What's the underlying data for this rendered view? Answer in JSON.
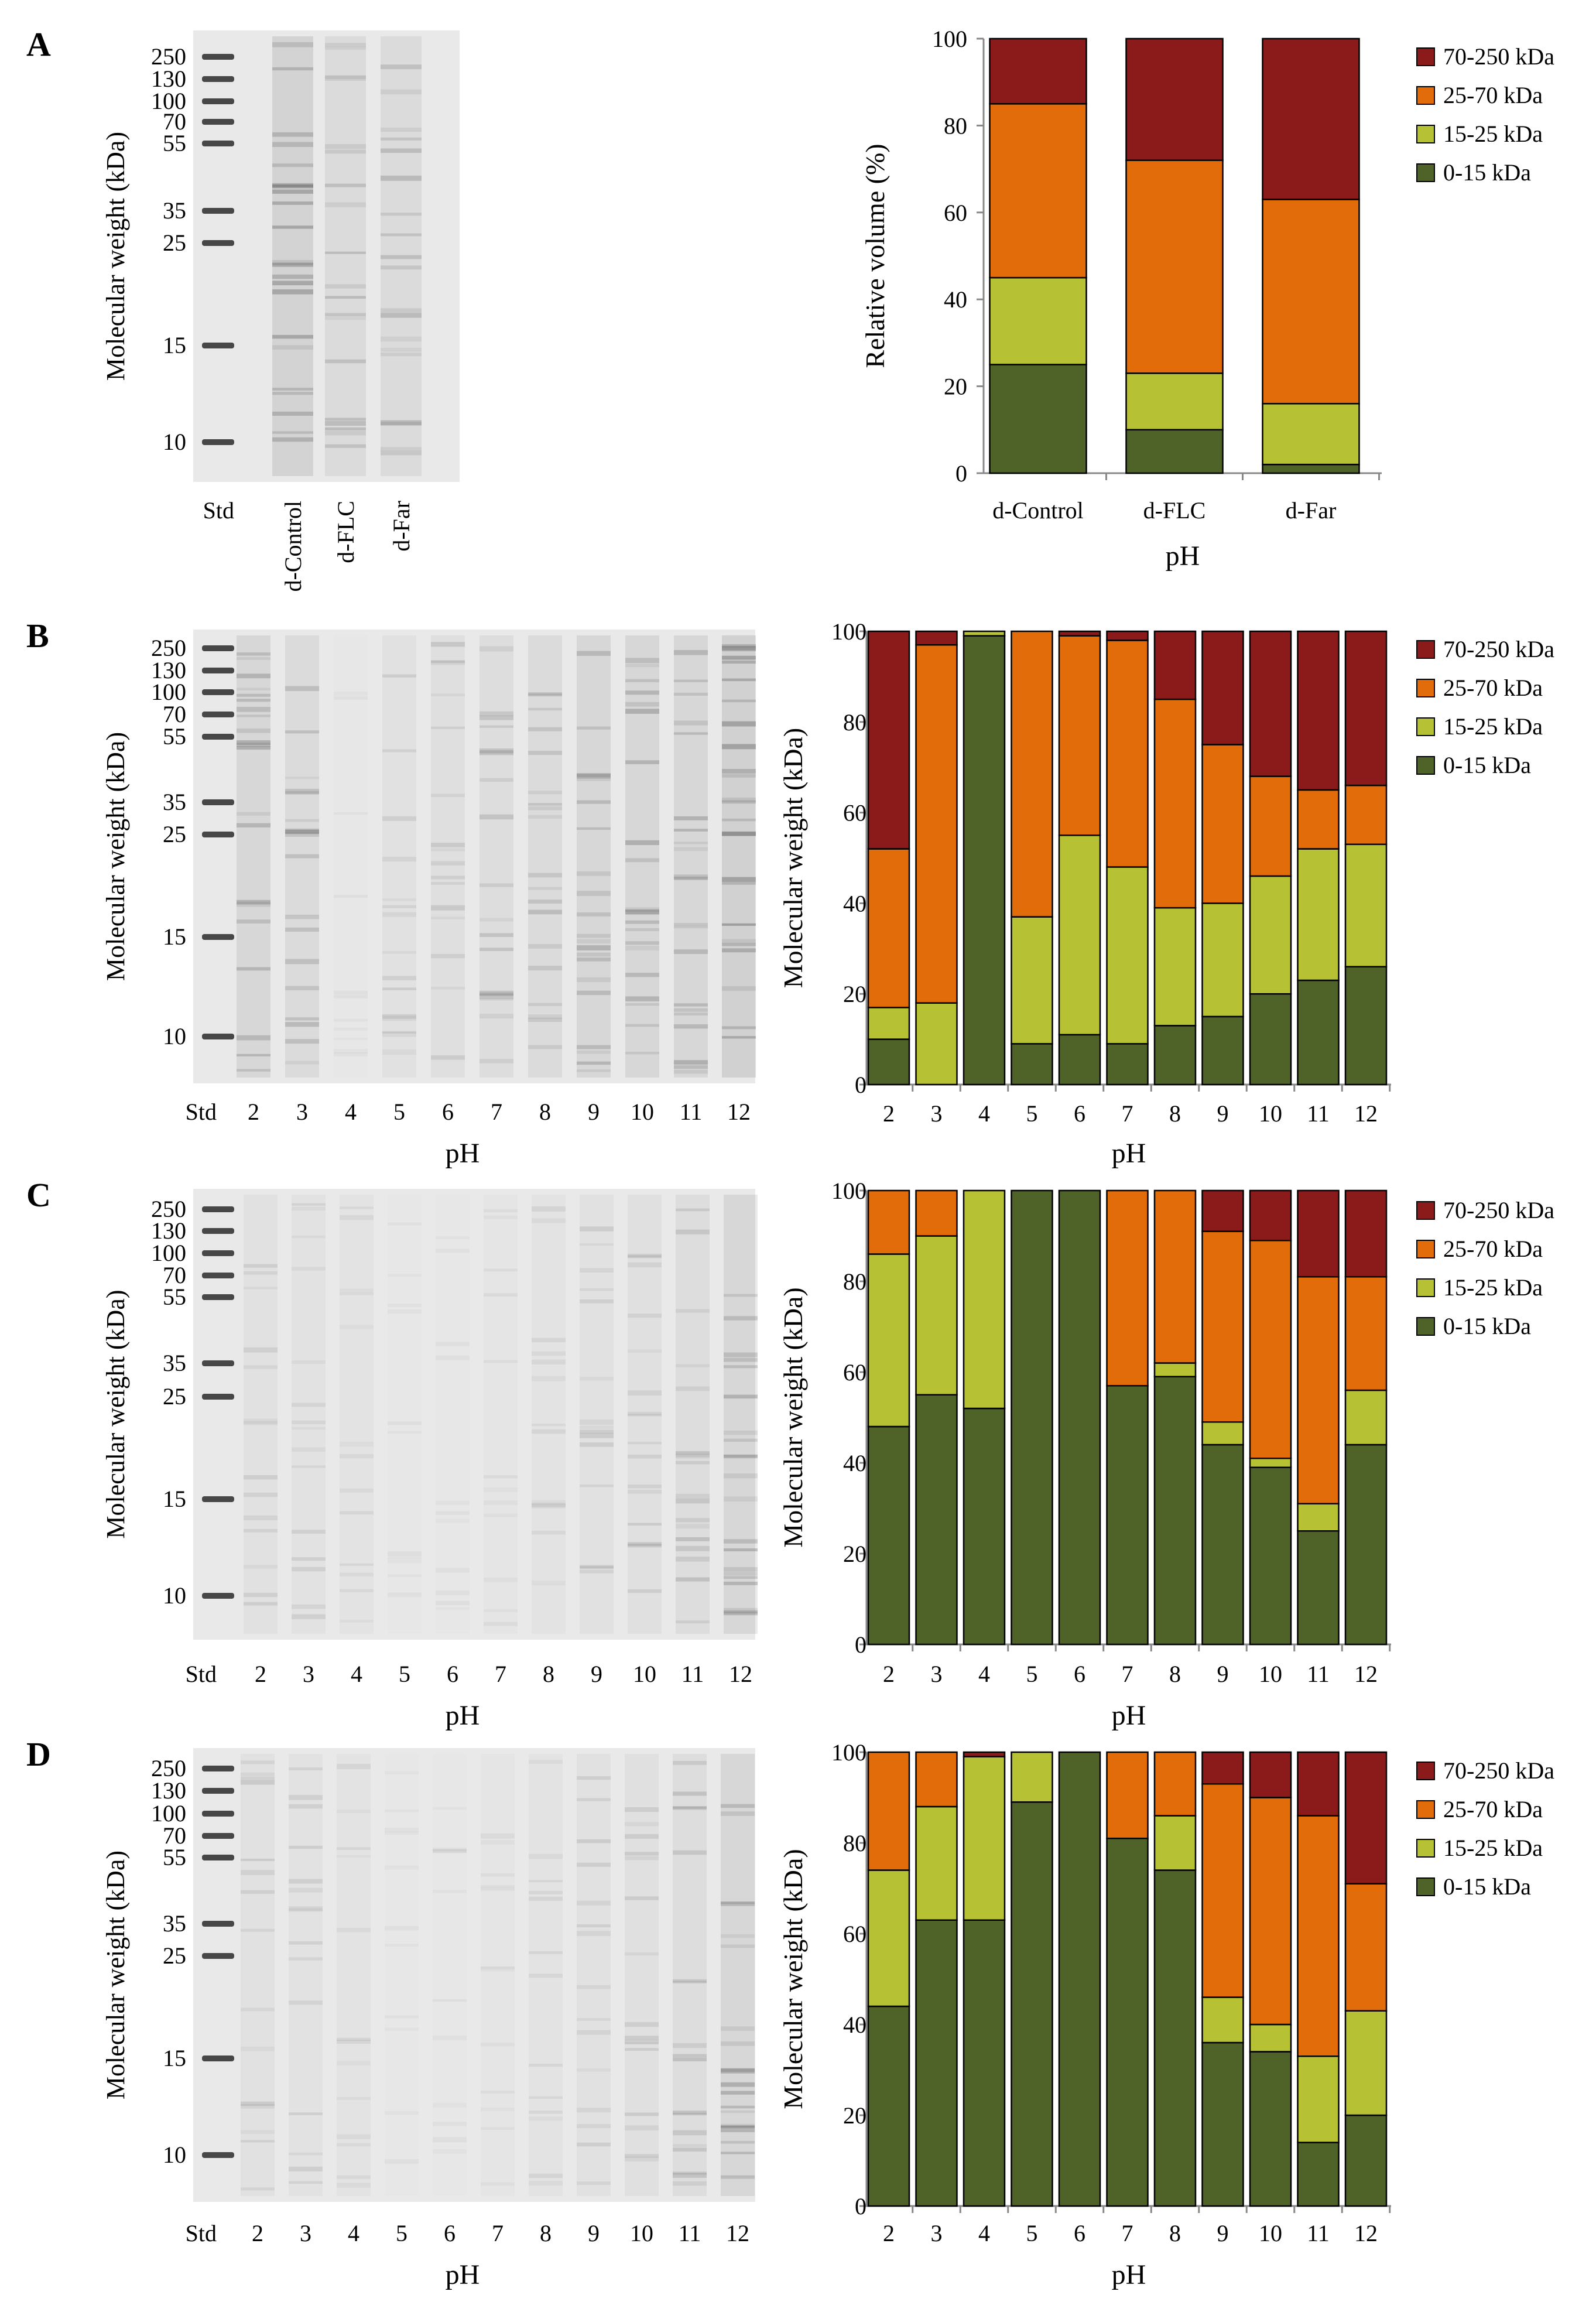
{
  "figure": {
    "panel_letters": [
      "A",
      "B",
      "C",
      "D"
    ],
    "colors": {
      "c0_15": "#4f6228",
      "c15_25": "#b6c133",
      "c25_70": "#e36c0a",
      "c70_250": "#8b1a1a",
      "bar_stroke": "#000000",
      "gel_bg": "#e9e9e9",
      "band": "#5a5a5a"
    }
  },
  "gels": [
    {
      "id": "A",
      "ylabel": "Molecular weight (kDa)",
      "markers": [
        "250",
        "130",
        "100",
        "70",
        "55",
        "35",
        "25",
        "15",
        "10"
      ],
      "std_label": "Std",
      "lanes": [
        "d-Control",
        "d-FLC",
        "d-Far"
      ],
      "xlabel": ""
    },
    {
      "id": "B",
      "ylabel": "Molecular weight (kDa)",
      "markers": [
        "250",
        "130",
        "100",
        "70",
        "55",
        "35",
        "25",
        "15",
        "10"
      ],
      "std_label": "Std",
      "lanes": [
        "2",
        "3",
        "4",
        "5",
        "6",
        "7",
        "8",
        "9",
        "10",
        "11",
        "12"
      ],
      "xlabel": "pH"
    },
    {
      "id": "C",
      "ylabel": "Molecular weight (kDa)",
      "markers": [
        "250",
        "130",
        "100",
        "70",
        "55",
        "35",
        "25",
        "15",
        "10"
      ],
      "std_label": "Std",
      "lanes": [
        "2",
        "3",
        "4",
        "5",
        "6",
        "7",
        "8",
        "9",
        "10",
        "11",
        "12"
      ],
      "xlabel": "pH"
    },
    {
      "id": "D",
      "ylabel": "Molecular weight (kDa)",
      "markers": [
        "250",
        "130",
        "100",
        "70",
        "55",
        "35",
        "25",
        "15",
        "10"
      ],
      "std_label": "Std",
      "lanes": [
        "2",
        "3",
        "4",
        "5",
        "6",
        "7",
        "8",
        "9",
        "10",
        "11",
        "12"
      ],
      "xlabel": "pH"
    }
  ],
  "chart_data": [
    {
      "panel": "A",
      "type": "bar",
      "stacked": true,
      "ylabel": "Relative volume (%)",
      "xlabel": "pH",
      "ylim": [
        0,
        100
      ],
      "yticks": [
        0,
        20,
        40,
        60,
        80,
        100
      ],
      "categories": [
        "d-Control",
        "d-FLC",
        "d-Far"
      ],
      "series": [
        {
          "name": "0-15 kDa",
          "values": [
            25,
            10,
            2
          ]
        },
        {
          "name": "15-25 kDa",
          "values": [
            20,
            13,
            14
          ]
        },
        {
          "name": "25-70 kDa",
          "values": [
            40,
            49,
            47
          ]
        },
        {
          "name": "70-250 kDa",
          "values": [
            15,
            28,
            37
          ]
        }
      ],
      "legend_order": [
        "70-250 kDa",
        "25-70 kDa",
        "15-25 kDa",
        "0-15 kDa"
      ]
    },
    {
      "panel": "B",
      "type": "bar",
      "stacked": true,
      "ylabel": "Molecular weight (kDa)",
      "xlabel": "pH",
      "ylim": [
        0,
        100
      ],
      "yticks": [
        0,
        20,
        40,
        60,
        80,
        100
      ],
      "categories": [
        "2",
        "3",
        "4",
        "5",
        "6",
        "7",
        "8",
        "9",
        "10",
        "11",
        "12"
      ],
      "series": [
        {
          "name": "0-15 kDa",
          "values": [
            10,
            0,
            99,
            9,
            11,
            9,
            13,
            15,
            20,
            23,
            26
          ]
        },
        {
          "name": "15-25 kDa",
          "values": [
            7,
            18,
            1,
            28,
            44,
            39,
            26,
            25,
            26,
            29,
            27
          ]
        },
        {
          "name": "25-70 kDa",
          "values": [
            35,
            79,
            0,
            63,
            44,
            50,
            46,
            35,
            22,
            13,
            13
          ]
        },
        {
          "name": "70-250 kDa",
          "values": [
            48,
            3,
            0,
            0,
            1,
            2,
            15,
            25,
            32,
            35,
            34
          ]
        }
      ],
      "legend_order": [
        "70-250 kDa",
        "25-70 kDa",
        "15-25 kDa",
        "0-15 kDa"
      ]
    },
    {
      "panel": "C",
      "type": "bar",
      "stacked": true,
      "ylabel": "Molecular weight (kDa)",
      "xlabel": "pH",
      "ylim": [
        0,
        100
      ],
      "yticks": [
        0,
        20,
        40,
        60,
        80,
        100
      ],
      "categories": [
        "2",
        "3",
        "4",
        "5",
        "6",
        "7",
        "8",
        "9",
        "10",
        "11",
        "12"
      ],
      "series": [
        {
          "name": "0-15 kDa",
          "values": [
            48,
            55,
            52,
            100,
            100,
            57,
            59,
            44,
            39,
            25,
            44
          ]
        },
        {
          "name": "15-25 kDa",
          "values": [
            38,
            35,
            48,
            0,
            0,
            0,
            3,
            5,
            2,
            6,
            12
          ]
        },
        {
          "name": "25-70 kDa",
          "values": [
            14,
            10,
            0,
            0,
            0,
            43,
            38,
            42,
            48,
            50,
            25
          ]
        },
        {
          "name": "70-250 kDa",
          "values": [
            0,
            0,
            0,
            0,
            0,
            0,
            0,
            9,
            11,
            19,
            19
          ]
        }
      ],
      "legend_order": [
        "70-250 kDa",
        "25-70 kDa",
        "15-25 kDa",
        "0-15 kDa"
      ]
    },
    {
      "panel": "D",
      "type": "bar",
      "stacked": true,
      "ylabel": "Molecular weight (kDa)",
      "xlabel": "pH",
      "ylim": [
        0,
        100
      ],
      "yticks": [
        0,
        20,
        40,
        60,
        80,
        100
      ],
      "categories": [
        "2",
        "3",
        "4",
        "5",
        "6",
        "7",
        "8",
        "9",
        "10",
        "11",
        "12"
      ],
      "series": [
        {
          "name": "0-15 kDa",
          "values": [
            44,
            63,
            63,
            89,
            100,
            81,
            74,
            36,
            34,
            14,
            20
          ]
        },
        {
          "name": "15-25 kDa",
          "values": [
            30,
            25,
            36,
            11,
            0,
            0,
            12,
            10,
            6,
            19,
            23
          ]
        },
        {
          "name": "25-70 kDa",
          "values": [
            26,
            12,
            0,
            0,
            0,
            19,
            14,
            47,
            50,
            53,
            28
          ]
        },
        {
          "name": "70-250 kDa",
          "values": [
            0,
            0,
            1,
            0,
            0,
            0,
            0,
            7,
            10,
            14,
            29
          ]
        }
      ],
      "legend_order": [
        "70-250 kDa",
        "25-70 kDa",
        "15-25 kDa",
        "0-15 kDa"
      ]
    }
  ]
}
